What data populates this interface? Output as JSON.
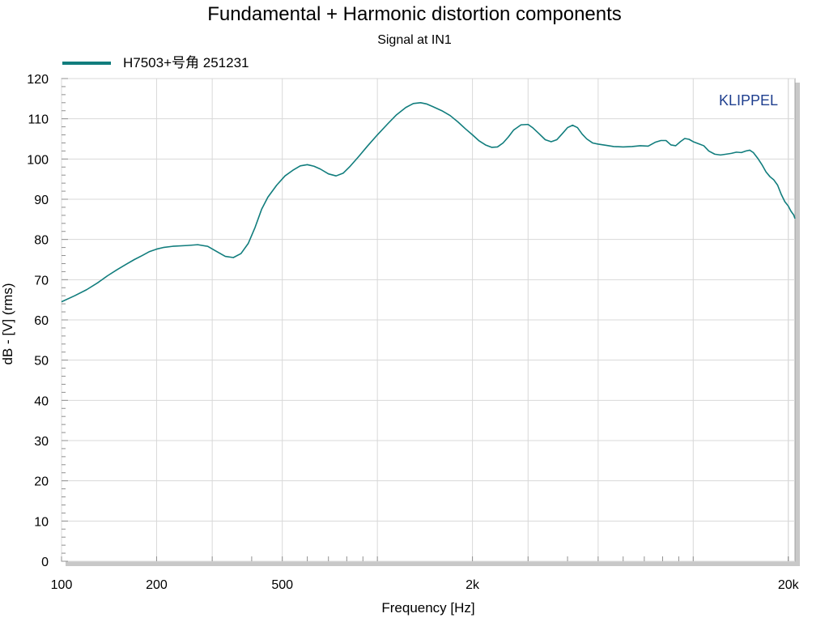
{
  "chart_data": {
    "type": "line",
    "title": "Fundamental + Harmonic distortion components",
    "subtitle": "Signal at IN1",
    "xlabel": "Frequency [Hz]",
    "ylabel": "dB - [V]  (rms)",
    "x_scale": "log",
    "xlim": [
      100,
      21000
    ],
    "ylim": [
      0,
      120
    ],
    "x_ticks": [
      {
        "value": 100,
        "label": "100"
      },
      {
        "value": 200,
        "label": "200"
      },
      {
        "value": 500,
        "label": "500"
      },
      {
        "value": 2000,
        "label": "2k"
      },
      {
        "value": 20000,
        "label": "20k"
      }
    ],
    "y_ticks": [
      0,
      10,
      20,
      30,
      40,
      50,
      60,
      70,
      80,
      90,
      100,
      110,
      120
    ],
    "grid": true,
    "legend_position": "top-left",
    "brand": "KLIPPEL",
    "brand_color": "#1f3f8f",
    "series": [
      {
        "name": "H7503+号角 251231",
        "color": "#117d7d",
        "points": [
          [
            100,
            64.5
          ],
          [
            110,
            66
          ],
          [
            120,
            67.5
          ],
          [
            130,
            69.2
          ],
          [
            140,
            71
          ],
          [
            150,
            72.5
          ],
          [
            160,
            73.8
          ],
          [
            170,
            75
          ],
          [
            180,
            76
          ],
          [
            190,
            77
          ],
          [
            200,
            77.6
          ],
          [
            210,
            78
          ],
          [
            225,
            78.3
          ],
          [
            250,
            78.5
          ],
          [
            270,
            78.7
          ],
          [
            290,
            78.3
          ],
          [
            310,
            77
          ],
          [
            330,
            75.8
          ],
          [
            350,
            75.5
          ],
          [
            370,
            76.5
          ],
          [
            390,
            79
          ],
          [
            410,
            83
          ],
          [
            430,
            87.5
          ],
          [
            450,
            90.5
          ],
          [
            480,
            93.5
          ],
          [
            510,
            95.8
          ],
          [
            540,
            97.2
          ],
          [
            570,
            98.3
          ],
          [
            600,
            98.6
          ],
          [
            630,
            98.2
          ],
          [
            660,
            97.5
          ],
          [
            700,
            96.3
          ],
          [
            740,
            95.8
          ],
          [
            780,
            96.5
          ],
          [
            820,
            98.2
          ],
          [
            870,
            100.5
          ],
          [
            930,
            103.2
          ],
          [
            1000,
            106
          ],
          [
            1080,
            108.8
          ],
          [
            1150,
            111
          ],
          [
            1230,
            112.8
          ],
          [
            1300,
            113.8
          ],
          [
            1370,
            114
          ],
          [
            1430,
            113.7
          ],
          [
            1500,
            113
          ],
          [
            1600,
            112
          ],
          [
            1700,
            110.8
          ],
          [
            1800,
            109.2
          ],
          [
            1900,
            107.5
          ],
          [
            2000,
            106
          ],
          [
            2100,
            104.5
          ],
          [
            2200,
            103.5
          ],
          [
            2300,
            102.9
          ],
          [
            2400,
            103
          ],
          [
            2500,
            104
          ],
          [
            2600,
            105.5
          ],
          [
            2700,
            107.2
          ],
          [
            2850,
            108.5
          ],
          [
            3000,
            108.6
          ],
          [
            3100,
            107.8
          ],
          [
            3250,
            106.3
          ],
          [
            3400,
            104.8
          ],
          [
            3550,
            104.3
          ],
          [
            3700,
            104.8
          ],
          [
            3850,
            106.3
          ],
          [
            4000,
            107.8
          ],
          [
            4150,
            108.4
          ],
          [
            4300,
            107.8
          ],
          [
            4450,
            106.2
          ],
          [
            4600,
            105
          ],
          [
            4800,
            104
          ],
          [
            5000,
            103.7
          ],
          [
            5300,
            103.4
          ],
          [
            5600,
            103.1
          ],
          [
            6000,
            103
          ],
          [
            6400,
            103.1
          ],
          [
            6800,
            103.3
          ],
          [
            7200,
            103.2
          ],
          [
            7600,
            104.2
          ],
          [
            7900,
            104.6
          ],
          [
            8200,
            104.6
          ],
          [
            8500,
            103.5
          ],
          [
            8800,
            103.3
          ],
          [
            9100,
            104.3
          ],
          [
            9400,
            105.1
          ],
          [
            9700,
            104.9
          ],
          [
            10000,
            104.3
          ],
          [
            10400,
            103.8
          ],
          [
            10800,
            103.3
          ],
          [
            11200,
            102
          ],
          [
            11700,
            101.2
          ],
          [
            12200,
            101
          ],
          [
            12700,
            101.2
          ],
          [
            13200,
            101.4
          ],
          [
            13700,
            101.7
          ],
          [
            14200,
            101.6
          ],
          [
            14700,
            102
          ],
          [
            15100,
            102.2
          ],
          [
            15500,
            101.6
          ],
          [
            16000,
            100.2
          ],
          [
            16500,
            98.6
          ],
          [
            17000,
            96.8
          ],
          [
            17500,
            95.6
          ],
          [
            18000,
            94.8
          ],
          [
            18500,
            93.5
          ],
          [
            19000,
            91.2
          ],
          [
            19500,
            89.4
          ],
          [
            20000,
            88.3
          ],
          [
            20400,
            87
          ],
          [
            20800,
            86.1
          ],
          [
            21000,
            85.2
          ]
        ]
      }
    ]
  }
}
